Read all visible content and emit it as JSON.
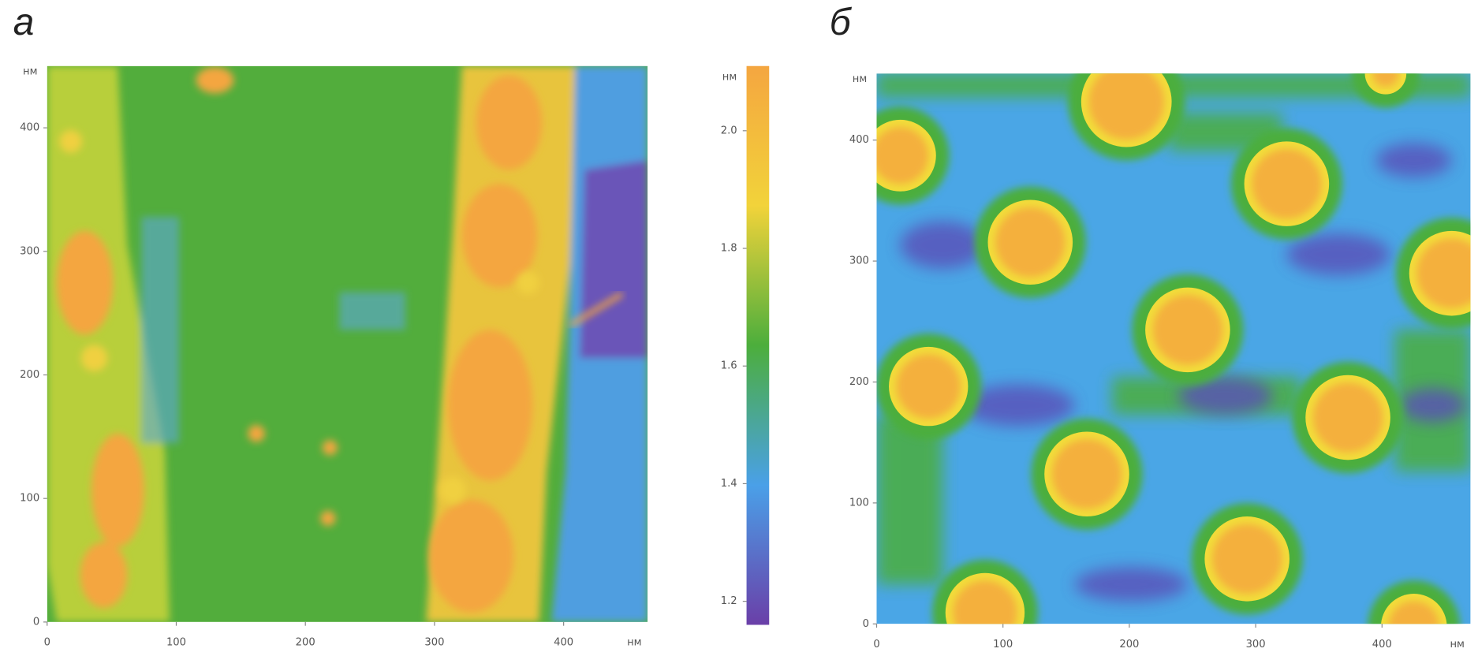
{
  "chart_data": [
    {
      "type": "heatmap",
      "panel_label": "а",
      "x_unit": "нм",
      "y_unit": "нм",
      "xlim": [
        0,
        465
      ],
      "xticks": [
        0,
        100,
        200,
        300,
        400
      ],
      "ylim": [
        0,
        450
      ],
      "yticks": [
        0,
        100,
        200,
        300,
        400
      ],
      "colorbar": {
        "unit": "нм",
        "lim": [
          1.16,
          2.11
        ],
        "ticks": [
          1.2,
          1.4,
          1.6,
          1.8,
          {
            "value": 2,
            "label": "2.0"
          }
        ],
        "colors": [
          "#6a3fa8",
          "#4aa0e8",
          "#4cae3c",
          "#f2d33a",
          "#f4a640"
        ]
      }
    },
    {
      "type": "heatmap",
      "panel_label": "б",
      "x_unit": "нм",
      "y_unit": "нм",
      "xlim": [
        0,
        470
      ],
      "xticks": [
        0,
        100,
        200,
        300,
        400
      ],
      "ylim": [
        0,
        455
      ],
      "yticks": [
        0,
        100,
        200,
        300,
        400
      ]
    }
  ]
}
